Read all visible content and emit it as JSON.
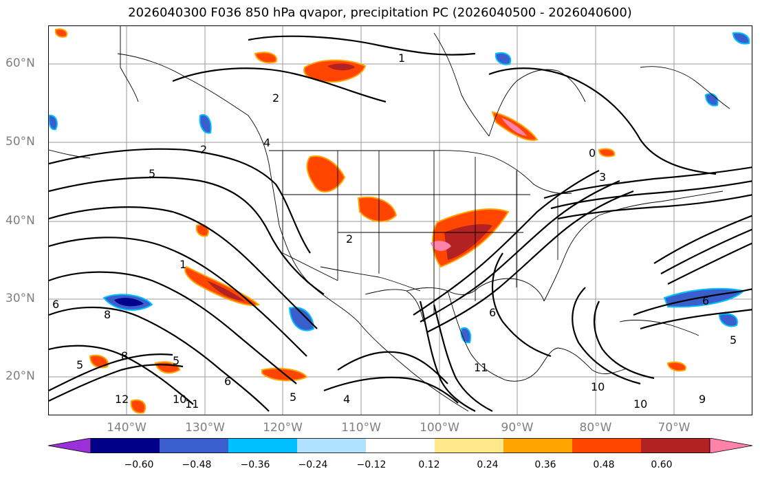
{
  "title": "2026040300 F036 850 hPa qvapor, precipitation PC (2026040500 - 2026040600)",
  "lat_labels": [
    "60°N",
    "50°N",
    "40°N",
    "30°N",
    "20°N"
  ],
  "lon_labels": [
    "140°W",
    "130°W",
    "120°W",
    "110°W",
    "100°W",
    "90°W",
    "80°W",
    "70°W"
  ],
  "colorbar": {
    "tick_labels": [
      "−0.60",
      "−0.48",
      "−0.36",
      "−0.24",
      "−0.12",
      "0.12",
      "0.24",
      "0.36",
      "0.48",
      "0.60"
    ],
    "colors": [
      "#9b30d9",
      "#00008b",
      "#3a5fcd",
      "#00bfff",
      "#b0e2ff",
      "#ffffff",
      "#ffe88a",
      "#ffa500",
      "#ff4500",
      "#b22222",
      "#ff82ab"
    ]
  },
  "contour_labels": [
    "1",
    "2",
    "2",
    "4",
    "2",
    "0",
    "3",
    "5",
    "1",
    "6",
    "8",
    "8",
    "5",
    "6",
    "5",
    "12",
    "10",
    "11",
    "5",
    "4",
    "6",
    "11",
    "10",
    "9",
    "10",
    "6",
    "5"
  ]
}
